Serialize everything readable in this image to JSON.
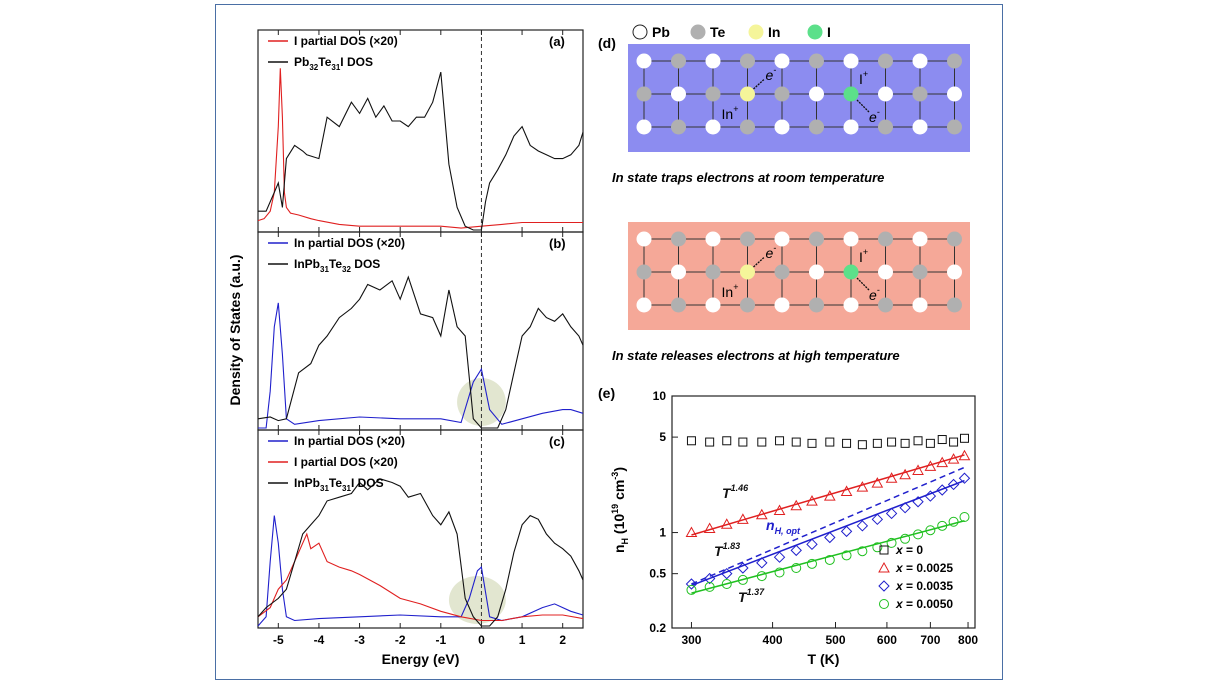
{
  "chart_data": [
    {
      "type": "line",
      "panel": "(a)",
      "ylabel": "Density of States (a.u.)",
      "xlim": [
        -5.5,
        2.5
      ],
      "fermi_level": 0,
      "legend": [
        {
          "text": "I partial DOS (×20)",
          "color": "#e02020"
        },
        {
          "text": "Pb32Te31I DOS",
          "color": "#111111",
          "main": "Pb",
          "sub1": "32",
          "mid": "Te",
          "sub2": "31",
          "tail": "I DOS"
        }
      ],
      "series": [
        {
          "name": "I partial DOS (x20)",
          "color": "#e02020",
          "x": [
            -5.5,
            -5.35,
            -5.2,
            -5.1,
            -5.0,
            -4.95,
            -4.9,
            -4.85,
            -4.8,
            -4.7,
            -4.5,
            -4.2,
            -4.0,
            -3.5,
            -3.0,
            -2.5,
            -2.0,
            -1.5,
            -1.0,
            -0.5,
            0,
            0.5,
            1.0,
            1.5,
            2.0,
            2.5
          ],
          "y": [
            0.05,
            0.06,
            0.1,
            0.2,
            0.55,
            0.86,
            0.6,
            0.2,
            0.12,
            0.09,
            0.08,
            0.06,
            0.05,
            0.03,
            0.02,
            0.02,
            0.02,
            0.02,
            0.02,
            0.01,
            0.02,
            0.03,
            0.04,
            0.04,
            0.04,
            0.04
          ]
        },
        {
          "name": "Pb32Te31I DOS",
          "color": "#111111",
          "x": [
            -5.5,
            -5.3,
            -5.1,
            -5.0,
            -4.9,
            -4.8,
            -4.6,
            -4.4,
            -4.3,
            -4.0,
            -3.8,
            -3.5,
            -3.2,
            -3.0,
            -2.8,
            -2.6,
            -2.4,
            -2.2,
            -2.0,
            -1.8,
            -1.6,
            -1.4,
            -1.2,
            -1.0,
            -0.8,
            -0.6,
            -0.4,
            -0.2,
            0,
            0.1,
            0.2,
            0.4,
            0.6,
            0.8,
            1.0,
            1.2,
            1.4,
            1.6,
            1.8,
            2.0,
            2.2,
            2.4,
            2.5
          ],
          "y": [
            0.1,
            0.1,
            0.2,
            0.25,
            0.12,
            0.38,
            0.45,
            0.42,
            0.4,
            0.38,
            0.6,
            0.55,
            0.68,
            0.62,
            0.7,
            0.6,
            0.66,
            0.58,
            0.58,
            0.55,
            0.6,
            0.6,
            0.68,
            0.84,
            0.35,
            0.12,
            0.02,
            0.0,
            0.0,
            0.15,
            0.25,
            0.32,
            0.4,
            0.5,
            0.55,
            0.45,
            0.42,
            0.4,
            0.38,
            0.38,
            0.4,
            0.45,
            0.52
          ]
        }
      ]
    },
    {
      "type": "line",
      "panel": "(b)",
      "xlim": [
        -5.5,
        2.5
      ],
      "fermi_level": 0,
      "legend": [
        {
          "text": "In partial DOS (×20)",
          "color": "#2020cc"
        },
        {
          "text": "InPb31Te32 DOS",
          "color": "#111111",
          "main": "InPb",
          "sub1": "31",
          "mid": "Te",
          "sub2": "32",
          "tail": " DOS"
        }
      ],
      "highlight": {
        "x": [
          -0.6,
          0.6
        ],
        "note": "shaded ellipse around Fermi level"
      },
      "series": [
        {
          "name": "In partial DOS (x20)",
          "color": "#2020cc",
          "x": [
            -5.5,
            -5.3,
            -5.2,
            -5.1,
            -5.0,
            -4.9,
            -4.8,
            -4.6,
            -4.0,
            -3.0,
            -2.0,
            -1.0,
            -0.5,
            -0.2,
            0,
            0.2,
            0.5,
            1.0,
            1.5,
            2.0,
            2.2,
            2.5
          ],
          "y": [
            0.0,
            0.0,
            0.2,
            0.55,
            0.68,
            0.4,
            0.05,
            0.02,
            0.04,
            0.06,
            0.05,
            0.05,
            0.03,
            0.25,
            0.32,
            0.1,
            0.02,
            0.05,
            0.08,
            0.1,
            0.1,
            0.08
          ]
        },
        {
          "name": "InPb31Te32 DOS",
          "color": "#111111",
          "x": [
            -5.5,
            -5.2,
            -5.0,
            -4.8,
            -4.5,
            -4.2,
            -4.0,
            -3.8,
            -3.5,
            -3.2,
            -3.0,
            -2.8,
            -2.5,
            -2.2,
            -2.0,
            -1.8,
            -1.5,
            -1.2,
            -1.0,
            -0.8,
            -0.6,
            -0.4,
            -0.2,
            0,
            0.2,
            0.4,
            0.6,
            0.8,
            1.0,
            1.2,
            1.4,
            1.6,
            1.8,
            2.0,
            2.2,
            2.4,
            2.5
          ],
          "y": [
            0.05,
            0.06,
            0.04,
            0.05,
            0.3,
            0.35,
            0.45,
            0.5,
            0.6,
            0.65,
            0.7,
            0.78,
            0.75,
            0.8,
            0.7,
            0.82,
            0.62,
            0.6,
            0.5,
            0.75,
            0.55,
            0.5,
            0.05,
            0.0,
            0.0,
            0.0,
            0.1,
            0.3,
            0.5,
            0.55,
            0.65,
            0.6,
            0.58,
            0.62,
            0.55,
            0.5,
            0.45
          ]
        }
      ]
    },
    {
      "type": "line",
      "panel": "(c)",
      "xlabel": "Energy (eV)",
      "xlim": [
        -5.5,
        2.5
      ],
      "xticks": [
        -5,
        -4,
        -3,
        -2,
        -1,
        0,
        1,
        2
      ],
      "fermi_level": 0,
      "legend": [
        {
          "text": "In partial DOS (×20)",
          "color": "#2020cc"
        },
        {
          "text": "I partial DOS (×20)",
          "color": "#e02020"
        },
        {
          "text": "InPb31Te31I DOS",
          "color": "#111111",
          "main": "InPb",
          "sub1": "31",
          "mid": "Te",
          "sub2": "31",
          "tail": "I DOS"
        }
      ],
      "highlight": {
        "x": [
          -0.8,
          0.6
        ],
        "note": "shaded ellipse around Fermi level"
      },
      "series": [
        {
          "name": "In partial DOS (x20)",
          "color": "#2020cc",
          "x": [
            -5.5,
            -5.3,
            -5.2,
            -5.1,
            -5.0,
            -4.9,
            -4.8,
            -4.6,
            -4.0,
            -3.0,
            -2.0,
            -1.0,
            -0.5,
            -0.3,
            -0.1,
            0,
            0.2,
            0.5,
            1.0,
            1.5,
            1.8,
            2.2,
            2.5
          ],
          "y": [
            0.0,
            0.05,
            0.35,
            0.6,
            0.45,
            0.2,
            0.05,
            0.03,
            0.04,
            0.05,
            0.06,
            0.05,
            0.05,
            0.15,
            0.3,
            0.32,
            0.05,
            0.03,
            0.05,
            0.1,
            0.12,
            0.08,
            0.06
          ]
        },
        {
          "name": "I partial DOS (x20)",
          "color": "#e02020",
          "x": [
            -5.5,
            -5.2,
            -5.0,
            -4.8,
            -4.6,
            -4.4,
            -4.3,
            -4.2,
            -4.0,
            -3.8,
            -3.5,
            -3.2,
            -3.0,
            -2.5,
            -2.0,
            -1.5,
            -1.0,
            -0.5,
            0,
            0.5,
            1.0,
            1.5,
            2.0,
            2.5
          ],
          "y": [
            0.05,
            0.1,
            0.2,
            0.25,
            0.35,
            0.45,
            0.5,
            0.42,
            0.45,
            0.35,
            0.32,
            0.3,
            0.28,
            0.22,
            0.15,
            0.12,
            0.08,
            0.05,
            0.03,
            0.03,
            0.05,
            0.06,
            0.06,
            0.04
          ]
        },
        {
          "name": "InPb31Te31I DOS",
          "color": "#111111",
          "x": [
            -5.5,
            -5.3,
            -5.0,
            -4.8,
            -4.6,
            -4.4,
            -4.2,
            -4.0,
            -3.8,
            -3.5,
            -3.2,
            -3.0,
            -2.8,
            -2.5,
            -2.2,
            -2.0,
            -1.8,
            -1.5,
            -1.2,
            -1.0,
            -0.8,
            -0.6,
            -0.4,
            -0.2,
            0,
            0.2,
            0.4,
            0.6,
            0.8,
            1.0,
            1.2,
            1.4,
            1.6,
            1.8,
            2.0,
            2.2,
            2.4,
            2.5
          ],
          "y": [
            0.05,
            0.1,
            0.15,
            0.2,
            0.35,
            0.5,
            0.55,
            0.6,
            0.68,
            0.7,
            0.72,
            0.78,
            0.74,
            0.8,
            0.78,
            0.76,
            0.7,
            0.72,
            0.6,
            0.55,
            0.62,
            0.5,
            0.15,
            0.05,
            0.0,
            0.0,
            0.05,
            0.2,
            0.4,
            0.55,
            0.6,
            0.58,
            0.5,
            0.45,
            0.42,
            0.38,
            0.3,
            0.25
          ]
        }
      ]
    },
    {
      "type": "scatter",
      "panel": "(e)",
      "xlabel": "T (K)",
      "ylabel_main": "n",
      "ylabel_sub": "H",
      "ylabel_tail": " (10",
      "ylabel_sup": "19",
      "ylabel_unit": " cm",
      "ylabel_sup2": "-3",
      "ylabel_end": ")",
      "xscale": "log",
      "yscale": "log",
      "xlim": [
        280,
        820
      ],
      "ylim": [
        0.2,
        10
      ],
      "xticks": [
        300,
        400,
        500,
        600,
        700,
        800
      ],
      "yticks": [
        0.2,
        0.5,
        1,
        5,
        10
      ],
      "yticklabels": [
        "0.2",
        "0.5",
        "1",
        "5",
        "10"
      ],
      "legend_position": "bottom-right",
      "series": [
        {
          "name": "x = 0",
          "prefix": "x",
          "suffix": " = 0",
          "color": "#111111",
          "marker": "square",
          "x": [
            300,
            320,
            340,
            360,
            385,
            410,
            435,
            460,
            490,
            520,
            550,
            580,
            610,
            640,
            670,
            700,
            730,
            760,
            790
          ],
          "y": [
            4.7,
            4.6,
            4.7,
            4.6,
            4.6,
            4.7,
            4.6,
            4.5,
            4.6,
            4.5,
            4.4,
            4.5,
            4.6,
            4.5,
            4.7,
            4.5,
            4.8,
            4.6,
            4.9
          ]
        },
        {
          "name": "x = 0.0025",
          "prefix": "x",
          "suffix": " = 0.0025",
          "color": "#e02020",
          "marker": "triangle",
          "x": [
            300,
            320,
            340,
            360,
            385,
            410,
            435,
            460,
            490,
            520,
            550,
            580,
            610,
            640,
            670,
            700,
            730,
            760,
            790
          ],
          "y": [
            1.0,
            1.07,
            1.15,
            1.25,
            1.35,
            1.45,
            1.57,
            1.7,
            1.85,
            2.0,
            2.15,
            2.3,
            2.5,
            2.65,
            2.85,
            3.05,
            3.25,
            3.45,
            3.65
          ]
        },
        {
          "name": "x = 0.0035",
          "prefix": "x",
          "suffix": " = 0.0035",
          "color": "#2020cc",
          "marker": "diamond",
          "x": [
            300,
            320,
            340,
            360,
            385,
            410,
            435,
            460,
            490,
            520,
            550,
            580,
            610,
            640,
            670,
            700,
            730,
            760,
            790
          ],
          "y": [
            0.42,
            0.46,
            0.5,
            0.55,
            0.6,
            0.66,
            0.74,
            0.82,
            0.92,
            1.02,
            1.12,
            1.25,
            1.38,
            1.52,
            1.68,
            1.85,
            2.05,
            2.25,
            2.5
          ]
        },
        {
          "name": "x = 0.0050",
          "prefix": "x",
          "suffix": " = 0.0050",
          "color": "#20c020",
          "marker": "circle",
          "x": [
            300,
            320,
            340,
            360,
            385,
            410,
            435,
            460,
            490,
            520,
            550,
            580,
            610,
            640,
            670,
            700,
            730,
            760,
            790
          ],
          "y": [
            0.38,
            0.4,
            0.42,
            0.45,
            0.48,
            0.51,
            0.55,
            0.59,
            0.63,
            0.68,
            0.73,
            0.78,
            0.84,
            0.9,
            0.97,
            1.04,
            1.12,
            1.2,
            1.3
          ]
        }
      ],
      "fits": [
        {
          "label_base": "T",
          "label_exp": "1.46",
          "color": "#e02020",
          "style": "solid",
          "x": [
            300,
            790
          ],
          "y": [
            0.96,
            3.7
          ]
        },
        {
          "label_base": "T",
          "label_exp": "1.83",
          "color": "#2020cc",
          "style": "solid",
          "x": [
            300,
            790
          ],
          "y": [
            0.41,
            2.4
          ]
        },
        {
          "label_base": "T",
          "label_exp": "1.37",
          "color": "#20c020",
          "style": "solid",
          "x": [
            300,
            790
          ],
          "y": [
            0.36,
            1.22
          ]
        },
        {
          "label_base": "n",
          "label_sub": "H, opt",
          "color": "#2020cc",
          "style": "dashed",
          "x": [
            300,
            790
          ],
          "y": [
            0.42,
            3.0
          ]
        }
      ]
    }
  ],
  "schematic": {
    "panel": "(d)",
    "legend": [
      {
        "text": "Pb",
        "color": "#ffffff"
      },
      {
        "text": "Te",
        "color": "#b0b0b0"
      },
      {
        "text": "In",
        "color": "#f5f59a"
      },
      {
        "text": "I",
        "color": "#5ce08a"
      }
    ],
    "labels": {
      "in_ion": "In",
      "in_sup": "+",
      "i_ion": "I",
      "i_sup": "+",
      "electron": "e",
      "electron_sup": "-"
    },
    "top": {
      "background": "#8c8cf0",
      "caption": "In state traps electrons at room temperature"
    },
    "bottom": {
      "background": "#f5a898",
      "caption": "In state releases electrons at high temperature"
    }
  }
}
